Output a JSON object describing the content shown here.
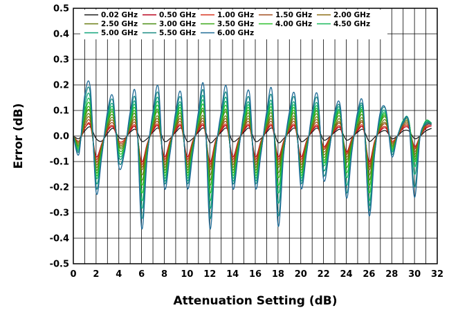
{
  "chart_data": {
    "type": "line",
    "title": "",
    "xlabel": "Attenuation Setting (dB)",
    "ylabel": "Error (dB)",
    "xlim": [
      0,
      32
    ],
    "ylim": [
      -0.5,
      0.5
    ],
    "x_ticks": [
      "0",
      "2",
      "4",
      "6",
      "8",
      "10",
      "12",
      "14",
      "16",
      "18",
      "20",
      "22",
      "24",
      "26",
      "28",
      "30",
      "32"
    ],
    "y_ticks": [
      "0.5",
      "0.4",
      "0.3",
      "0.2",
      "0.1",
      "0.0",
      "-0.1",
      "-0.2",
      "-0.3",
      "-0.4",
      "-0.5"
    ],
    "grid": true,
    "legend_position": "top",
    "x": [
      0,
      0.5,
      1,
      1.5,
      2,
      2.5,
      3,
      3.5,
      4,
      4.5,
      5,
      5.5,
      6,
      6.5,
      7,
      7.5,
      8,
      8.5,
      9,
      9.5,
      10,
      10.5,
      11,
      11.5,
      12,
      12.5,
      13,
      13.5,
      14,
      14.5,
      15,
      15.5,
      16,
      16.5,
      17,
      17.5,
      18,
      18.5,
      19,
      19.5,
      20,
      20.5,
      21,
      21.5,
      22,
      22.5,
      23,
      23.5,
      24,
      24.5,
      25,
      25.5,
      26,
      26.5,
      27,
      27.5,
      28,
      28.5,
      29,
      29.5,
      30,
      30.5,
      31,
      31.5
    ],
    "series": [
      {
        "name": "0.02 GHz",
        "color": "#1a1a1a",
        "values": [
          0.0,
          -0.01,
          0.02,
          0.035,
          -0.01,
          -0.02,
          0.01,
          0.03,
          -0.005,
          -0.01,
          0.015,
          0.025,
          -0.02,
          -0.01,
          0.015,
          0.03,
          -0.02,
          -0.01,
          0.015,
          0.03,
          -0.02,
          -0.01,
          0.015,
          0.03,
          -0.025,
          -0.01,
          0.015,
          0.03,
          -0.02,
          -0.01,
          0.015,
          0.03,
          -0.02,
          -0.01,
          0.015,
          0.03,
          -0.025,
          -0.01,
          0.015,
          0.03,
          -0.02,
          -0.01,
          0.015,
          0.03,
          -0.015,
          -0.005,
          0.015,
          0.025,
          -0.015,
          -0.005,
          0.015,
          0.025,
          -0.02,
          -0.005,
          0.015,
          0.02,
          -0.01,
          0.0,
          0.02,
          0.02,
          -0.01,
          0.0,
          0.02,
          0.03
        ]
      },
      {
        "name": "0.50 GHz",
        "color": "#b8001a",
        "values": [
          0.0,
          -0.02,
          0.03,
          0.04,
          -0.08,
          -0.03,
          0.02,
          0.035,
          -0.02,
          -0.015,
          0.02,
          0.03,
          -0.1,
          -0.03,
          0.02,
          0.035,
          -0.08,
          -0.02,
          0.02,
          0.035,
          -0.08,
          -0.02,
          0.02,
          0.035,
          -0.1,
          -0.02,
          0.02,
          0.035,
          -0.08,
          -0.02,
          0.02,
          0.035,
          -0.08,
          -0.02,
          0.02,
          0.035,
          -0.08,
          -0.02,
          0.02,
          0.035,
          -0.08,
          -0.02,
          0.02,
          0.035,
          -0.04,
          -0.01,
          0.02,
          0.03,
          -0.06,
          -0.01,
          0.02,
          0.03,
          -0.1,
          -0.02,
          0.02,
          0.03,
          -0.02,
          0.0,
          0.03,
          0.03,
          -0.04,
          0.0,
          0.03,
          0.04
        ]
      },
      {
        "name": "1.00 GHz",
        "color": "#d8301a",
        "values": [
          0.0,
          -0.02,
          0.03,
          0.045,
          -0.09,
          -0.03,
          0.025,
          0.04,
          -0.02,
          -0.015,
          0.025,
          0.035,
          -0.11,
          -0.03,
          0.025,
          0.04,
          -0.09,
          -0.02,
          0.025,
          0.04,
          -0.09,
          -0.02,
          0.025,
          0.04,
          -0.11,
          -0.02,
          0.025,
          0.04,
          -0.09,
          -0.02,
          0.025,
          0.04,
          -0.09,
          -0.02,
          0.025,
          0.04,
          -0.09,
          -0.02,
          0.025,
          0.04,
          -0.09,
          -0.02,
          0.025,
          0.04,
          -0.045,
          -0.01,
          0.025,
          0.035,
          -0.065,
          -0.01,
          0.025,
          0.035,
          -0.11,
          -0.02,
          0.025,
          0.035,
          -0.02,
          0.0,
          0.035,
          0.035,
          -0.045,
          0.0,
          0.035,
          0.045
        ]
      },
      {
        "name": "1.50 GHz",
        "color": "#a04a1a",
        "values": [
          0.0,
          -0.02,
          0.04,
          0.055,
          -0.1,
          -0.035,
          0.03,
          0.05,
          -0.025,
          -0.02,
          0.03,
          0.045,
          -0.12,
          -0.035,
          0.03,
          0.05,
          -0.1,
          -0.025,
          0.03,
          0.05,
          -0.1,
          -0.025,
          0.03,
          0.05,
          -0.12,
          -0.025,
          0.03,
          0.05,
          -0.1,
          -0.025,
          0.03,
          0.05,
          -0.1,
          -0.025,
          0.03,
          0.05,
          -0.1,
          -0.025,
          0.03,
          0.05,
          -0.1,
          -0.025,
          0.03,
          0.05,
          -0.05,
          -0.015,
          0.03,
          0.045,
          -0.07,
          -0.015,
          0.03,
          0.045,
          -0.12,
          -0.025,
          0.03,
          0.045,
          -0.025,
          0.0,
          0.04,
          0.04,
          -0.05,
          0.0,
          0.04,
          0.05
        ]
      },
      {
        "name": "2.00 GHz",
        "color": "#8a6a10",
        "values": [
          0.0,
          -0.025,
          0.05,
          0.065,
          -0.11,
          -0.04,
          0.035,
          0.06,
          -0.03,
          -0.025,
          0.035,
          0.055,
          -0.13,
          -0.04,
          0.035,
          0.06,
          -0.11,
          -0.03,
          0.035,
          0.06,
          -0.11,
          -0.03,
          0.035,
          0.06,
          -0.13,
          -0.03,
          0.035,
          0.06,
          -0.11,
          -0.03,
          0.035,
          0.06,
          -0.11,
          -0.03,
          0.035,
          0.06,
          -0.11,
          -0.03,
          0.035,
          0.06,
          -0.11,
          -0.03,
          0.035,
          0.06,
          -0.06,
          -0.02,
          0.035,
          0.05,
          -0.08,
          -0.02,
          0.035,
          0.05,
          -0.13,
          -0.03,
          0.035,
          0.05,
          -0.03,
          0.0,
          0.045,
          0.045,
          -0.06,
          0.0,
          0.045,
          0.05
        ]
      },
      {
        "name": "2.50 GHz",
        "color": "#6a7e12",
        "values": [
          0.0,
          -0.03,
          0.06,
          0.075,
          -0.12,
          -0.045,
          0.04,
          0.07,
          -0.035,
          -0.03,
          0.04,
          0.065,
          -0.15,
          -0.045,
          0.04,
          0.07,
          -0.12,
          -0.035,
          0.04,
          0.07,
          -0.12,
          -0.035,
          0.04,
          0.07,
          -0.15,
          -0.035,
          0.04,
          0.07,
          -0.12,
          -0.035,
          0.04,
          0.07,
          -0.12,
          -0.035,
          0.04,
          0.07,
          -0.12,
          -0.035,
          0.04,
          0.07,
          -0.12,
          -0.035,
          0.04,
          0.07,
          -0.07,
          -0.025,
          0.04,
          0.06,
          -0.09,
          -0.025,
          0.04,
          0.06,
          -0.15,
          -0.035,
          0.04,
          0.06,
          -0.035,
          0.0,
          0.05,
          0.05,
          -0.07,
          0.0,
          0.05,
          0.05
        ]
      },
      {
        "name": "3.00 GHz",
        "color": "#4a8e12",
        "values": [
          0.0,
          -0.035,
          0.07,
          0.09,
          -0.13,
          -0.05,
          0.05,
          0.08,
          -0.04,
          -0.035,
          0.05,
          0.075,
          -0.17,
          -0.05,
          0.05,
          0.085,
          -0.13,
          -0.04,
          0.05,
          0.08,
          -0.13,
          -0.04,
          0.05,
          0.085,
          -0.17,
          -0.04,
          0.05,
          0.085,
          -0.13,
          -0.04,
          0.05,
          0.08,
          -0.13,
          -0.04,
          0.05,
          0.08,
          -0.14,
          -0.04,
          0.05,
          0.08,
          -0.13,
          -0.04,
          0.05,
          0.08,
          -0.08,
          -0.03,
          0.05,
          0.07,
          -0.1,
          -0.03,
          0.05,
          0.07,
          -0.17,
          -0.04,
          0.05,
          0.07,
          -0.04,
          0.0,
          0.055,
          0.055,
          -0.08,
          0.0,
          0.055,
          0.05
        ]
      },
      {
        "name": "3.50 GHz",
        "color": "#3aa818",
        "values": [
          0.0,
          -0.04,
          0.08,
          0.1,
          -0.14,
          -0.055,
          0.055,
          0.09,
          -0.05,
          -0.04,
          0.055,
          0.085,
          -0.19,
          -0.055,
          0.055,
          0.095,
          -0.14,
          -0.045,
          0.055,
          0.09,
          -0.14,
          -0.045,
          0.055,
          0.095,
          -0.19,
          -0.045,
          0.055,
          0.095,
          -0.14,
          -0.045,
          0.055,
          0.09,
          -0.14,
          -0.045,
          0.055,
          0.09,
          -0.16,
          -0.045,
          0.055,
          0.09,
          -0.14,
          -0.045,
          0.055,
          0.09,
          -0.09,
          -0.035,
          0.055,
          0.08,
          -0.12,
          -0.035,
          0.055,
          0.08,
          -0.19,
          -0.045,
          0.055,
          0.075,
          -0.045,
          0.0,
          0.06,
          0.06,
          -0.09,
          0.0,
          0.06,
          0.05
        ]
      },
      {
        "name": "4.00 GHz",
        "color": "#2ac02a",
        "values": [
          0.0,
          -0.045,
          0.09,
          0.115,
          -0.15,
          -0.06,
          0.06,
          0.1,
          -0.06,
          -0.045,
          0.06,
          0.095,
          -0.22,
          -0.06,
          0.06,
          0.11,
          -0.15,
          -0.05,
          0.06,
          0.1,
          -0.15,
          -0.05,
          0.06,
          0.11,
          -0.22,
          -0.05,
          0.06,
          0.11,
          -0.15,
          -0.05,
          0.06,
          0.1,
          -0.15,
          -0.05,
          0.06,
          0.1,
          -0.19,
          -0.05,
          0.06,
          0.1,
          -0.15,
          -0.05,
          0.06,
          0.1,
          -0.1,
          -0.04,
          0.06,
          0.085,
          -0.14,
          -0.04,
          0.06,
          0.085,
          -0.22,
          -0.05,
          0.06,
          0.08,
          -0.05,
          0.0,
          0.06,
          0.06,
          -0.1,
          0.0,
          0.06,
          0.05
        ]
      },
      {
        "name": "4.50 GHz",
        "color": "#18b85a",
        "values": [
          0.0,
          -0.05,
          0.1,
          0.13,
          -0.16,
          -0.065,
          0.065,
          0.11,
          -0.07,
          -0.05,
          0.065,
          0.105,
          -0.25,
          -0.065,
          0.065,
          0.125,
          -0.16,
          -0.055,
          0.065,
          0.11,
          -0.16,
          -0.055,
          0.065,
          0.125,
          -0.25,
          -0.055,
          0.065,
          0.125,
          -0.16,
          -0.055,
          0.065,
          0.11,
          -0.16,
          -0.055,
          0.065,
          0.11,
          -0.22,
          -0.055,
          0.065,
          0.11,
          -0.16,
          -0.055,
          0.065,
          0.11,
          -0.11,
          -0.045,
          0.065,
          0.09,
          -0.16,
          -0.045,
          0.065,
          0.09,
          -0.25,
          -0.055,
          0.065,
          0.085,
          -0.055,
          0.0,
          0.06,
          0.06,
          -0.12,
          0.0,
          0.06,
          0.05
        ]
      },
      {
        "name": "5.00 GHz",
        "color": "#10a47a",
        "values": [
          0.0,
          -0.055,
          0.12,
          0.145,
          -0.18,
          -0.07,
          0.075,
          0.12,
          -0.08,
          -0.055,
          0.075,
          0.115,
          -0.28,
          -0.07,
          0.075,
          0.14,
          -0.17,
          -0.06,
          0.075,
          0.12,
          -0.17,
          -0.06,
          0.075,
          0.14,
          -0.28,
          -0.06,
          0.075,
          0.14,
          -0.17,
          -0.06,
          0.075,
          0.12,
          -0.17,
          -0.06,
          0.075,
          0.12,
          -0.26,
          -0.06,
          0.075,
          0.12,
          -0.17,
          -0.06,
          0.075,
          0.12,
          -0.13,
          -0.05,
          0.075,
          0.095,
          -0.19,
          -0.05,
          0.075,
          0.095,
          -0.27,
          -0.06,
          0.075,
          0.09,
          -0.06,
          0.0,
          0.06,
          0.06,
          -0.15,
          0.0,
          0.055,
          0.05
        ]
      },
      {
        "name": "5.50 GHz",
        "color": "#188a82",
        "values": [
          0.0,
          -0.06,
          0.14,
          0.165,
          -0.2,
          -0.075,
          0.085,
          0.135,
          -0.1,
          -0.06,
          0.085,
          0.13,
          -0.32,
          -0.075,
          0.085,
          0.16,
          -0.18,
          -0.065,
          0.085,
          0.14,
          -0.18,
          -0.065,
          0.085,
          0.16,
          -0.32,
          -0.065,
          0.085,
          0.16,
          -0.18,
          -0.065,
          0.085,
          0.14,
          -0.18,
          -0.065,
          0.085,
          0.14,
          -0.31,
          -0.065,
          0.085,
          0.14,
          -0.18,
          -0.065,
          0.085,
          0.14,
          -0.15,
          -0.055,
          0.085,
          0.1,
          -0.22,
          -0.055,
          0.085,
          0.1,
          -0.29,
          -0.065,
          0.085,
          0.1,
          -0.07,
          0.0,
          0.055,
          0.055,
          -0.2,
          0.0,
          0.05,
          0.05
        ]
      },
      {
        "name": "6.00 GHz",
        "color": "#1e6a96",
        "values": [
          0.0,
          -0.07,
          0.16,
          0.185,
          -0.22,
          -0.08,
          0.095,
          0.15,
          -0.12,
          -0.065,
          0.095,
          0.155,
          -0.36,
          -0.08,
          0.095,
          0.185,
          -0.2,
          -0.07,
          0.095,
          0.16,
          -0.2,
          -0.07,
          0.095,
          0.185,
          -0.36,
          -0.07,
          0.095,
          0.185,
          -0.2,
          -0.07,
          0.095,
          0.165,
          -0.2,
          -0.07,
          0.095,
          0.165,
          -0.35,
          -0.07,
          0.095,
          0.155,
          -0.2,
          -0.07,
          0.095,
          0.155,
          -0.17,
          -0.06,
          0.095,
          0.11,
          -0.24,
          -0.06,
          0.095,
          0.115,
          -0.31,
          -0.07,
          0.095,
          0.1,
          -0.08,
          0.0,
          0.05,
          0.05,
          -0.24,
          0.0,
          0.045,
          0.045
        ]
      }
    ]
  }
}
